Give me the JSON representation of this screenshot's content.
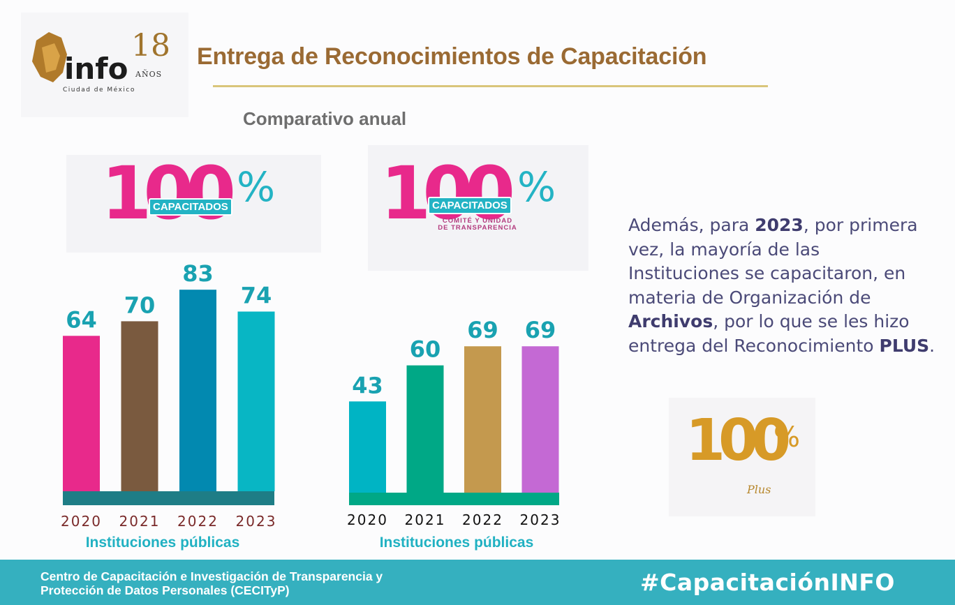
{
  "header": {
    "logo_text": "info",
    "logo_number": "18",
    "logo_years": "AÑOS",
    "logo_city": "Ciudad de México",
    "title": "Entrega de Reconocimientos de Capacitación",
    "subtitle": "Comparativo anual"
  },
  "badges": {
    "left": {
      "number": "100",
      "percent": "%",
      "pill": "CAPACITADOS"
    },
    "right": {
      "number": "100",
      "percent": "%",
      "pill": "CAPACITADOS",
      "caption_line1": "COMITÉ Y UNIDAD",
      "caption_line2": "DE TRANSPARENCIA"
    },
    "plus": {
      "number": "100",
      "percent": "%",
      "word": "Plus"
    }
  },
  "chart_data": [
    {
      "type": "bar",
      "categories": [
        "2020",
        "2021",
        "2022",
        "2023"
      ],
      "values": [
        64,
        70,
        83,
        74
      ],
      "xlabel": "Instituciones públicas",
      "colors": [
        "#e8298b",
        "#7a5a3f",
        "#0289b0",
        "#08b6c4"
      ],
      "label_colors": [
        "#19a2b1",
        "#19a2b1",
        "#19a2b1",
        "#19a2b1"
      ],
      "year_color": "#7a2a2a",
      "base_color": "#1e7d86"
    },
    {
      "type": "bar",
      "categories": [
        "2020",
        "2021",
        "2022",
        "2023"
      ],
      "values": [
        43,
        60,
        69,
        69
      ],
      "xlabel": "Instituciones públicas",
      "colors": [
        "#00b4c4",
        "#00a886",
        "#c4994e",
        "#c469d4"
      ],
      "label_colors": [
        "#19a2b1",
        "#19a2b1",
        "#19a2b1",
        "#19a2b1"
      ],
      "year_color": "#111111",
      "base_color": "#00a886"
    }
  ],
  "info": {
    "p1": "Además, para ",
    "b1": "2023",
    "p2": ", por primera vez, la mayoría de las Instituciones se capacitaron, en materia de Organización de ",
    "b2": "Archivos",
    "p3": ", por lo que se les hizo entrega del Reconocimiento ",
    "b3": "PLUS",
    "p4": "."
  },
  "footer": {
    "line1": "Centro de Capacitación e Investigación de Transparencia y",
    "line2": "Protección de Datos Personales (CECITyP)",
    "hashtag": "#CapacitaciónINFO"
  }
}
